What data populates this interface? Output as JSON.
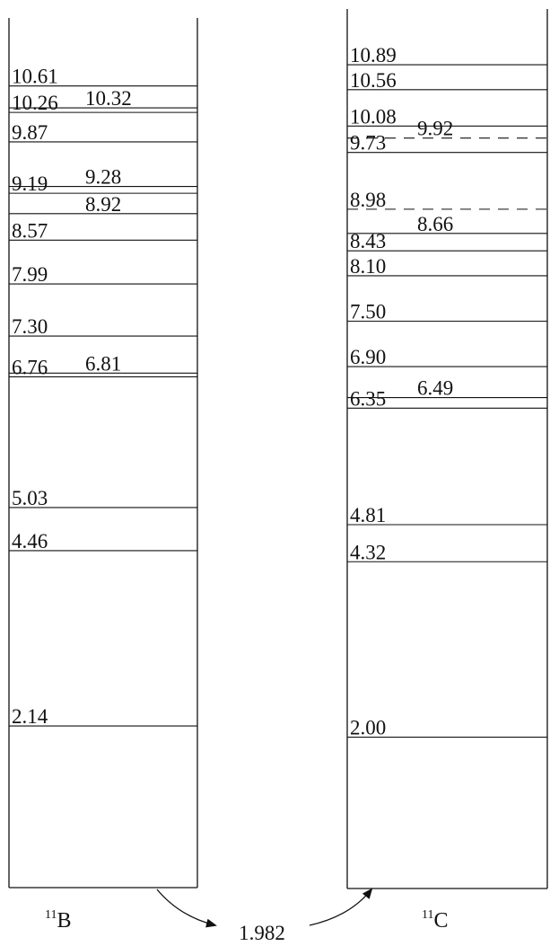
{
  "diagrams": [
    {
      "id": "b11",
      "nucleus": {
        "mass": "11",
        "symbol": "B"
      },
      "levels": [
        {
          "energy": "10.61",
          "column": "left",
          "style": "solid"
        },
        {
          "energy": "10.32",
          "column": "right",
          "style": "solid"
        },
        {
          "energy": "10.26",
          "column": "left",
          "style": "solid"
        },
        {
          "energy": "9.87",
          "column": "left",
          "style": "solid"
        },
        {
          "energy": "9.28",
          "column": "right",
          "style": "solid"
        },
        {
          "energy": "9.19",
          "column": "left",
          "style": "solid"
        },
        {
          "energy": "8.92",
          "column": "right",
          "style": "solid"
        },
        {
          "energy": "8.57",
          "column": "left",
          "style": "solid"
        },
        {
          "energy": "7.99",
          "column": "left",
          "style": "solid"
        },
        {
          "energy": "7.30",
          "column": "left",
          "style": "solid"
        },
        {
          "energy": "6.81",
          "column": "right",
          "style": "solid"
        },
        {
          "energy": "6.76",
          "column": "left",
          "style": "solid"
        },
        {
          "energy": "5.03",
          "column": "left",
          "style": "solid"
        },
        {
          "energy": "4.46",
          "column": "left",
          "style": "solid"
        },
        {
          "energy": "2.14",
          "column": "left",
          "style": "solid"
        }
      ]
    },
    {
      "id": "c11",
      "nucleus": {
        "mass": "11",
        "symbol": "C"
      },
      "levels": [
        {
          "energy": "10.89",
          "column": "left",
          "style": "solid"
        },
        {
          "energy": "10.56",
          "column": "left",
          "style": "solid"
        },
        {
          "energy": "10.08",
          "column": "left",
          "style": "solid"
        },
        {
          "energy": "9.92",
          "column": "right",
          "style": "dashed"
        },
        {
          "energy": "9.73",
          "column": "left",
          "style": "solid"
        },
        {
          "energy": "8.98",
          "column": "left",
          "style": "dashed"
        },
        {
          "energy": "8.66",
          "column": "right",
          "style": "solid"
        },
        {
          "energy": "8.43",
          "column": "left",
          "style": "solid"
        },
        {
          "energy": "8.10",
          "column": "left",
          "style": "solid"
        },
        {
          "energy": "7.50",
          "column": "left",
          "style": "solid"
        },
        {
          "energy": "6.90",
          "column": "left",
          "style": "solid"
        },
        {
          "energy": "6.49",
          "column": "right",
          "style": "solid"
        },
        {
          "energy": "6.35",
          "column": "left",
          "style": "solid"
        },
        {
          "energy": "4.81",
          "column": "left",
          "style": "solid"
        },
        {
          "energy": "4.32",
          "column": "left",
          "style": "solid"
        },
        {
          "energy": "2.00",
          "column": "left",
          "style": "solid"
        }
      ]
    }
  ],
  "transition": {
    "energy_difference": "1.982"
  }
}
